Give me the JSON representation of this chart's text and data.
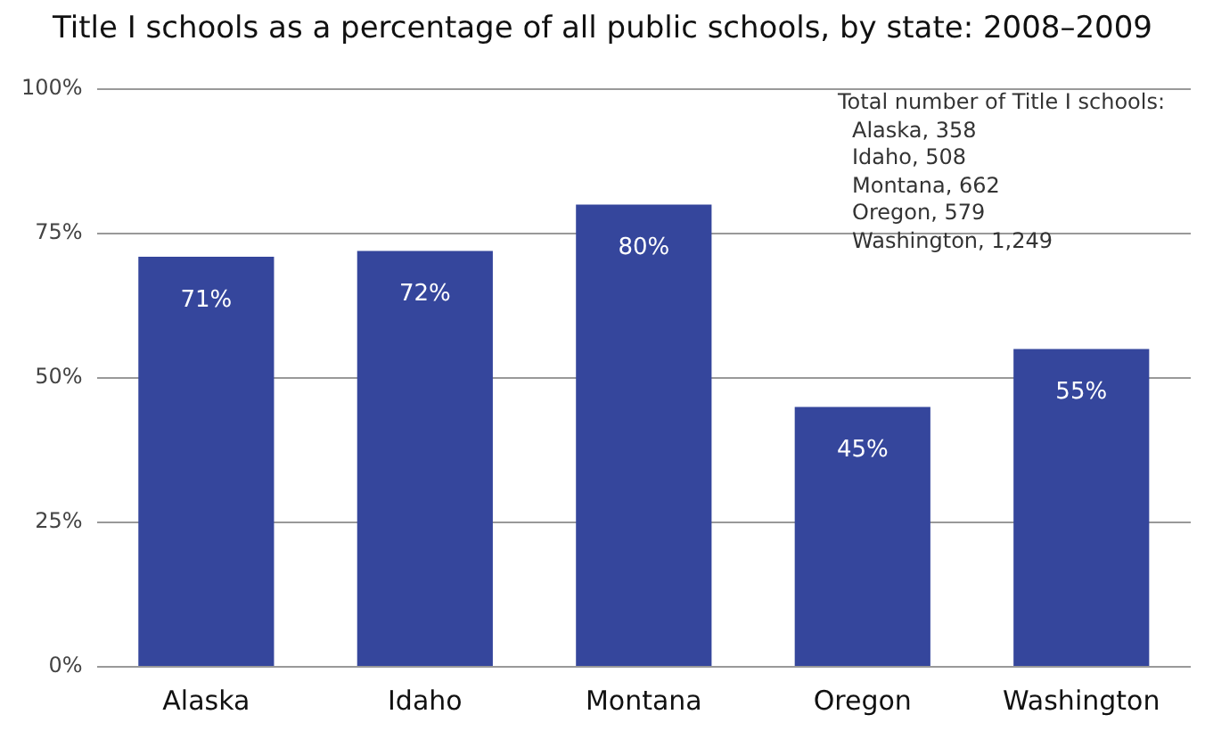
{
  "chart_data": {
    "type": "bar",
    "title": "Title I schools as a percentage of all public schools, by state: 2008–2009",
    "categories": [
      "Alaska",
      "Idaho",
      "Montana",
      "Oregon",
      "Washington"
    ],
    "values": [
      71,
      72,
      80,
      45,
      55
    ],
    "color": "#35469c",
    "ylim": [
      0,
      100
    ],
    "yticks": [
      {
        "value": 0,
        "label": "0%"
      },
      {
        "value": 25,
        "label": "25%"
      },
      {
        "value": 50,
        "label": "50%"
      },
      {
        "value": 75,
        "label": "75%"
      },
      {
        "value": 100,
        "label": "100%"
      }
    ],
    "value_labels": [
      "71%",
      "72%",
      "80%",
      "45%",
      "55%"
    ],
    "grid": "y",
    "legend": false,
    "annotations": [
      "Total number of Title I schools:",
      "Alaska, 358",
      "Idaho, 508",
      "Montana, 662",
      "Oregon, 579",
      "Washington, 1,249"
    ]
  }
}
